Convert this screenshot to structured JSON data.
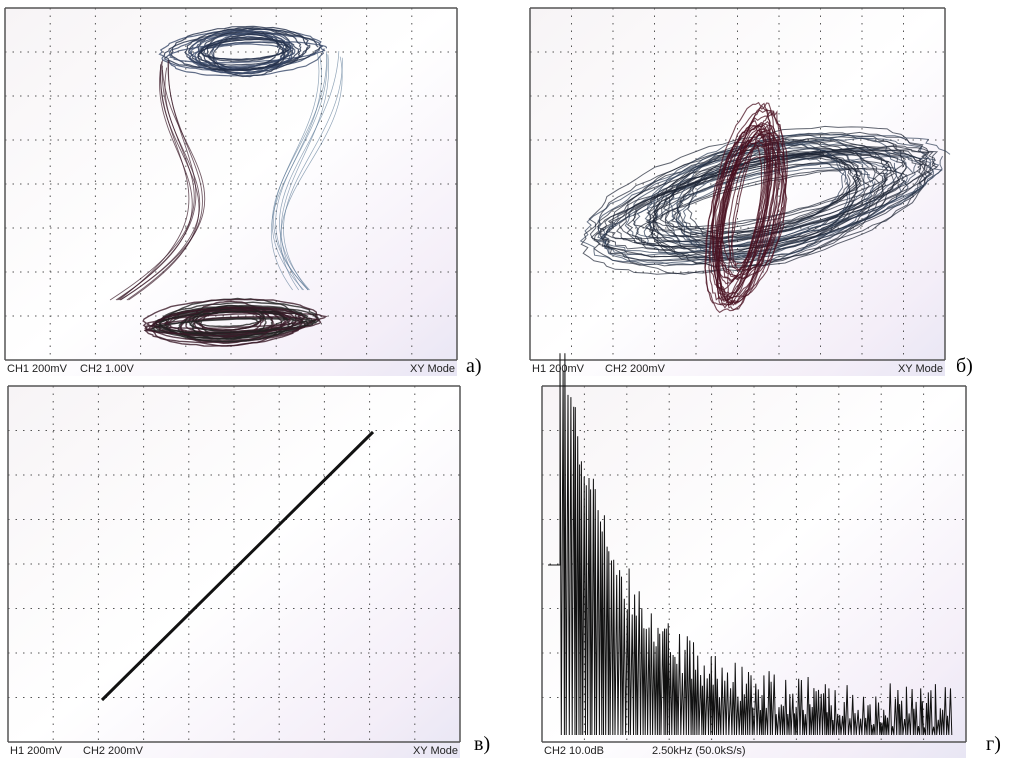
{
  "panels": [
    {
      "label": "а)",
      "status_left": "CH1 200mV",
      "status_mid": "CH2 1.00V",
      "status_right": "XY Mode"
    },
    {
      "label": "б)",
      "status_left": "H1 200mV",
      "status_mid": "CH2 200mV",
      "status_right": "XY Mode"
    },
    {
      "label": "в)",
      "status_left": "H1 200mV",
      "status_mid": "CH2 200mV",
      "status_right": "XY Mode"
    },
    {
      "label": "г)",
      "status_left": "CH2 10.0dB",
      "status_mid": "2.50kHz (50.0kS/s)"
    }
  ]
}
